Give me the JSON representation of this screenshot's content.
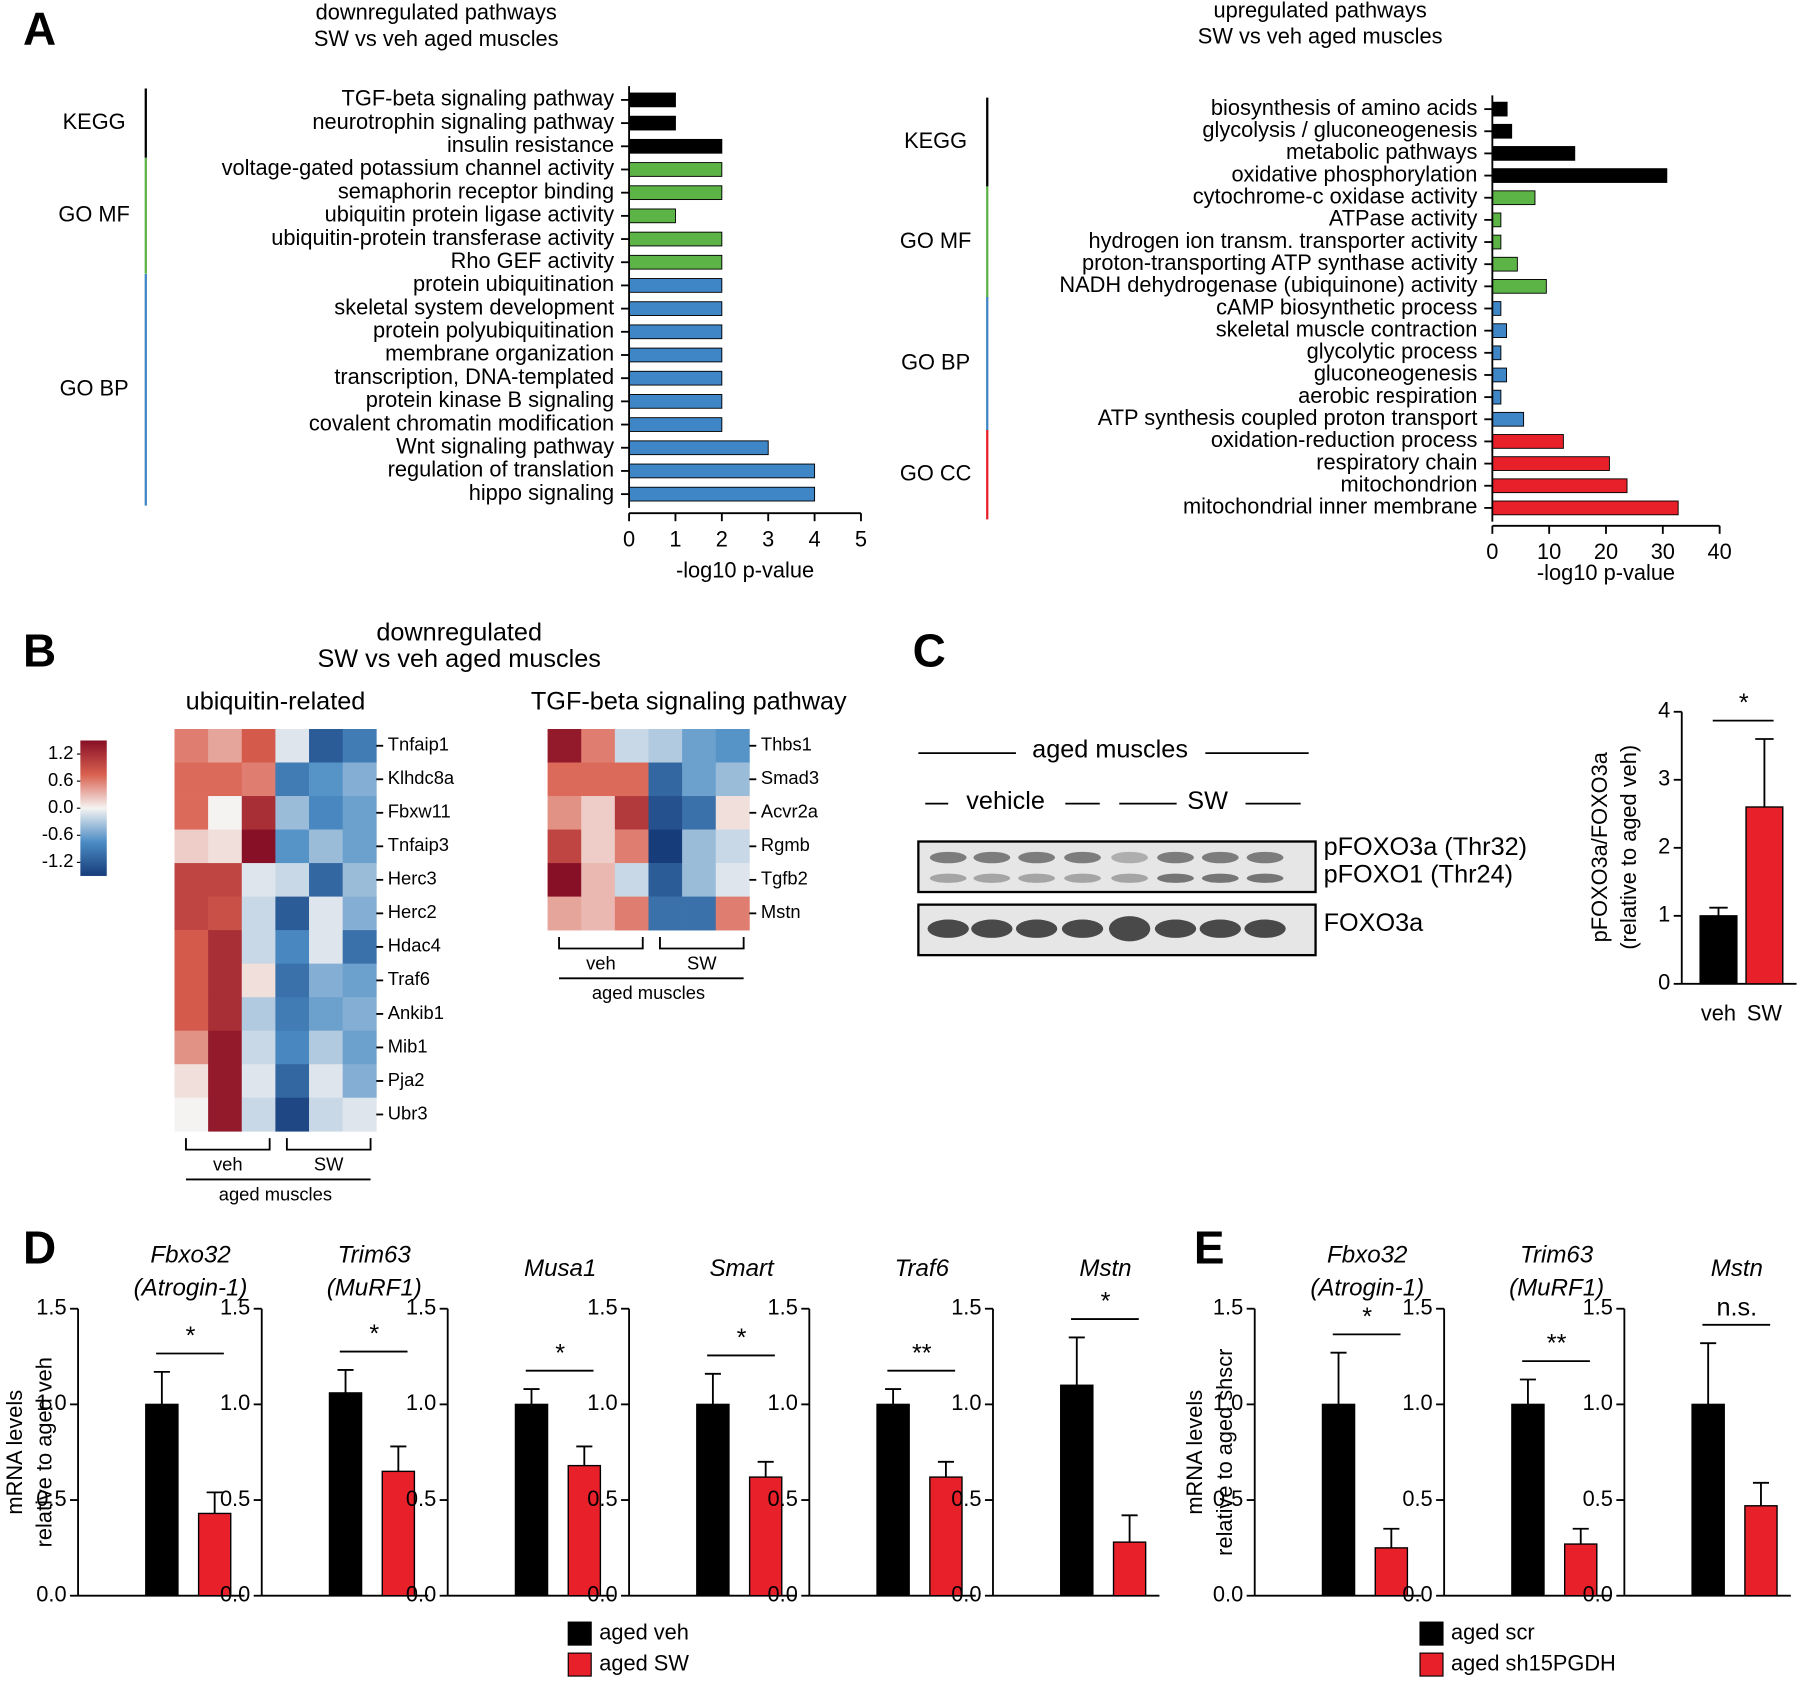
{
  "panel_labels": [
    "A",
    "B",
    "C",
    "D",
    "E"
  ],
  "chart_data": [
    {
      "type": "hbar",
      "title": [
        "downregulated pathways",
        "SW vs veh aged muscles"
      ],
      "groups": [
        {
          "name": "KEGG",
          "color": "#000000",
          "categories": [
            "TGF-beta signaling pathway",
            "neurotrophin signaling pathway",
            "insulin resistance"
          ],
          "values": [
            1,
            1,
            2
          ]
        },
        {
          "name": "GO MF",
          "color": "#5db446",
          "categories": [
            "voltage-gated potassium channel activity",
            "semaphorin receptor binding",
            "ubiquitin protein ligase activity",
            "ubiquitin-protein transferase activity",
            "Rho GEF activity"
          ],
          "values": [
            2,
            2,
            1,
            2,
            2
          ]
        },
        {
          "name": "GO BP",
          "color": "#3f86c6",
          "categories": [
            "protein ubiquitination",
            "skeletal system development",
            "protein polyubiquitination",
            "membrane organization",
            "transcription, DNA-templated",
            "protein kinase B signaling",
            "covalent chromatin modification",
            "Wnt signaling pathway",
            "regulation of translation",
            "hippo signaling"
          ],
          "values": [
            2,
            2,
            2,
            2,
            2,
            2,
            2,
            3,
            4,
            4
          ]
        }
      ],
      "xlim": [
        0,
        5
      ],
      "xticks": [
        0,
        1,
        2,
        3,
        4,
        5
      ],
      "xlabel": "-log10 p-value"
    },
    {
      "type": "hbar",
      "title": [
        "upregulated pathways",
        "SW vs veh aged muscles"
      ],
      "groups": [
        {
          "name": "KEGG",
          "color": "#000000",
          "categories": [
            "biosynthesis of amino acids",
            "glycolysis / gluconeogenesis",
            "metabolic pathways",
            "oxidative phosphorylation"
          ],
          "values": [
            2.6,
            3.4,
            14.5,
            30.7
          ]
        },
        {
          "name": "GO MF",
          "color": "#5db446",
          "categories": [
            "cytochrome-c oxidase activity",
            "ATPase activity",
            "hydrogen ion transm. transporter activity",
            "proton-transporting ATP synthase activity",
            "NADH dehydrogenase (ubiquinone) activity"
          ],
          "values": [
            7.5,
            1.5,
            1.5,
            4.4,
            9.5
          ]
        },
        {
          "name": "GO BP",
          "color": "#3f86c6",
          "categories": [
            "cAMP biosynthetic process",
            "skeletal muscle contraction",
            "glycolytic process",
            "gluconeogenesis",
            "aerobic respiration",
            "ATP synthesis coupled proton transport"
          ],
          "values": [
            1.5,
            2.5,
            1.5,
            2.5,
            1.5,
            5.5
          ]
        },
        {
          "name": "GO CC",
          "color": "#e8202a",
          "categories": [
            "oxidation-reduction process",
            "respiratory chain",
            "mitochondrion",
            "mitochondrial inner membrane"
          ],
          "values": [
            12.5,
            20.6,
            23.7,
            32.7
          ]
        }
      ],
      "xlim": [
        0,
        40
      ],
      "xticks": [
        0,
        10,
        20,
        30,
        40
      ],
      "xlabel": "-log10 p-value"
    },
    {
      "type": "heatmap",
      "title": [
        "downregulated",
        "SW vs veh aged muscles"
      ],
      "clim": [
        -1.5,
        1.5
      ],
      "cticks": [
        1.2,
        0.6,
        {
          "value": 0,
          "label": "0.0"
        },
        -0.6,
        -1.2
      ],
      "colors": [
        "#173c7a",
        "#4b8cc4",
        "#f5f3f2",
        "#d9604f",
        "#870f26"
      ],
      "heatmaps": [
        {
          "subtitle": "ubiquitin-related",
          "rows": [
            "Tnfaip1",
            "Klhdc8a",
            "Fbxw11",
            "Tnfaip3",
            "Herc3",
            "Herc2",
            "Hdac4",
            "Traf6",
            "Ankib1",
            "Mib1",
            "Pja2",
            "Ubr3"
          ],
          "values": [
            [
              0.6,
              0.4,
              0.8,
              -0.1,
              -1.2,
              -0.9
            ],
            [
              0.7,
              0.7,
              0.6,
              -0.9,
              -0.7,
              -0.5
            ],
            [
              0.7,
              0.0,
              1.2,
              -0.4,
              -0.8,
              -0.6
            ],
            [
              0.2,
              0.1,
              1.5,
              -0.7,
              -0.4,
              -0.6
            ],
            [
              1.0,
              1.0,
              -0.1,
              -0.2,
              -1.1,
              -0.4
            ],
            [
              1.0,
              0.9,
              -0.2,
              -1.2,
              -0.1,
              -0.5
            ],
            [
              0.8,
              1.2,
              -0.2,
              -0.8,
              -0.1,
              -1.0
            ],
            [
              0.8,
              1.2,
              0.1,
              -1.0,
              -0.5,
              -0.6
            ],
            [
              0.8,
              1.2,
              -0.3,
              -0.9,
              -0.6,
              -0.5
            ],
            [
              0.5,
              1.4,
              -0.2,
              -0.8,
              -0.3,
              -0.6
            ],
            [
              0.1,
              1.4,
              -0.1,
              -1.1,
              -0.1,
              -0.5
            ],
            [
              0.0,
              1.4,
              -0.2,
              -1.4,
              -0.2,
              -0.1
            ]
          ]
        },
        {
          "subtitle": "TGF-beta signaling pathway",
          "rows": [
            "Thbs1",
            "Smad3",
            "Acvr2a",
            "Rgmb",
            "Tgfb2",
            "Mstn"
          ],
          "values": [
            [
              1.4,
              0.6,
              -0.2,
              -0.3,
              -0.6,
              -0.7
            ],
            [
              0.7,
              0.7,
              0.7,
              -1.1,
              -0.6,
              -0.4
            ],
            [
              0.5,
              0.2,
              1.1,
              -1.3,
              -1.0,
              0.1
            ],
            [
              1.0,
              0.2,
              0.6,
              -1.5,
              -0.4,
              -0.2
            ],
            [
              1.5,
              0.3,
              -0.2,
              -1.2,
              -0.4,
              -0.1
            ],
            [
              0.4,
              0.3,
              0.6,
              -1.0,
              -1.0,
              0.6
            ]
          ]
        }
      ],
      "column_groups": [
        "veh",
        "SW"
      ],
      "xlabel": "aged muscles"
    },
    {
      "type": "bar",
      "categories": [
        "veh",
        "SW"
      ],
      "values": [
        1.0,
        2.6
      ],
      "errors": [
        0.12,
        1.0
      ],
      "colors": [
        "#000000",
        "#e8202a"
      ],
      "ylim": [
        0,
        4
      ],
      "yticks": [
        0,
        1,
        2,
        3,
        4
      ],
      "ylabel": [
        "pFOXO3a/FOXO3a",
        "(relative to aged veh)"
      ],
      "significance": "*"
    },
    {
      "type": "bar",
      "title": [
        "Fbxo32",
        "(Atrogin-1)"
      ],
      "values": [
        1.0,
        0.43
      ],
      "errors": [
        0.17,
        0.11
      ],
      "colors": [
        "#000000",
        "#e8202a"
      ],
      "ylim": [
        0,
        1.5
      ],
      "yticks": [
        {
          "value": 0,
          "label": "0.0"
        },
        0.5,
        {
          "value": 1,
          "label": "1.0"
        },
        1.5
      ],
      "ylabel": [
        "mRNA levels",
        "relative to aged veh"
      ],
      "significance": "*"
    },
    {
      "type": "bar",
      "title": [
        "Trim63",
        "(MuRF1)"
      ],
      "values": [
        1.06,
        0.65
      ],
      "errors": [
        0.12,
        0.13
      ],
      "colors": [
        "#000000",
        "#e8202a"
      ],
      "ylim": [
        0,
        1.5
      ],
      "yticks": [
        {
          "value": 0,
          "label": "0.0"
        },
        0.5,
        {
          "value": 1,
          "label": "1.0"
        },
        1.5
      ],
      "significance": "*"
    },
    {
      "type": "bar",
      "title": [
        "Musa1"
      ],
      "values": [
        1.0,
        0.68
      ],
      "errors": [
        0.08,
        0.1
      ],
      "colors": [
        "#000000",
        "#e8202a"
      ],
      "ylim": [
        0,
        1.5
      ],
      "yticks": [
        {
          "value": 0,
          "label": "0.0"
        },
        0.5,
        {
          "value": 1,
          "label": "1.0"
        },
        1.5
      ],
      "significance": "*"
    },
    {
      "type": "bar",
      "title": [
        "Smart"
      ],
      "values": [
        1.0,
        0.62
      ],
      "errors": [
        0.16,
        0.08
      ],
      "colors": [
        "#000000",
        "#e8202a"
      ],
      "ylim": [
        0,
        1.5
      ],
      "yticks": [
        {
          "value": 0,
          "label": "0.0"
        },
        0.5,
        {
          "value": 1,
          "label": "1.0"
        },
        1.5
      ],
      "significance": "*"
    },
    {
      "type": "bar",
      "title": [
        "Traf6"
      ],
      "values": [
        1.0,
        0.62
      ],
      "errors": [
        0.08,
        0.08
      ],
      "colors": [
        "#000000",
        "#e8202a"
      ],
      "ylim": [
        0,
        1.5
      ],
      "yticks": [
        {
          "value": 0,
          "label": "0.0"
        },
        0.5,
        {
          "value": 1,
          "label": "1.0"
        },
        1.5
      ],
      "significance": "**"
    },
    {
      "type": "bar",
      "title": [
        "Mstn"
      ],
      "values": [
        1.1,
        0.28
      ],
      "errors": [
        0.25,
        0.14
      ],
      "colors": [
        "#000000",
        "#e8202a"
      ],
      "ylim": [
        0,
        1.5
      ],
      "yticks": [
        {
          "value": 0,
          "label": "0.0"
        },
        0.5,
        {
          "value": 1,
          "label": "1.0"
        },
        1.5
      ],
      "significance": "*"
    },
    {
      "type": "bar",
      "title": [
        "Fbxo32",
        "(Atrogin-1)"
      ],
      "values": [
        1.0,
        0.25
      ],
      "errors": [
        0.27,
        0.1
      ],
      "colors": [
        "#000000",
        "#e8202a"
      ],
      "ylim": [
        0,
        1.5
      ],
      "yticks": [
        {
          "value": 0,
          "label": "0.0"
        },
        0.5,
        {
          "value": 1,
          "label": "1.0"
        },
        1.5
      ],
      "ylabel": [
        "mRNA levels",
        "relative to aged shscr"
      ],
      "significance": "*"
    },
    {
      "type": "bar",
      "title": [
        "Trim63",
        "(MuRF1)"
      ],
      "values": [
        1.0,
        0.27
      ],
      "errors": [
        0.13,
        0.08
      ],
      "colors": [
        "#000000",
        "#e8202a"
      ],
      "ylim": [
        0,
        1.5
      ],
      "yticks": [
        {
          "value": 0,
          "label": "0.0"
        },
        0.5,
        {
          "value": 1,
          "label": "1.0"
        },
        1.5
      ],
      "significance": "**"
    },
    {
      "type": "bar",
      "title": [
        "Mstn"
      ],
      "values": [
        1.0,
        0.47
      ],
      "errors": [
        0.32,
        0.12
      ],
      "colors": [
        "#000000",
        "#e8202a"
      ],
      "ylim": [
        0,
        1.5
      ],
      "yticks": [
        {
          "value": 0,
          "label": "0.0"
        },
        0.5,
        {
          "value": 1,
          "label": "1.0"
        },
        1.5
      ],
      "significance": "n.s."
    }
  ],
  "blot": {
    "header": "aged muscles",
    "groups": [
      "vehicle",
      "SW"
    ],
    "bands": [
      "pFOXO3a (Thr32)",
      "pFOXO1 (Thr24)",
      "FOXO3a"
    ]
  },
  "legends": [
    {
      "entries": [
        {
          "name": "aged veh",
          "color": "#000000"
        },
        {
          "name": "aged SW",
          "color": "#e8202a"
        }
      ]
    },
    {
      "entries": [
        {
          "name": "aged scr",
          "color": "#000000"
        },
        {
          "name": "aged sh15PGDH",
          "color": "#e8202a"
        }
      ]
    }
  ]
}
